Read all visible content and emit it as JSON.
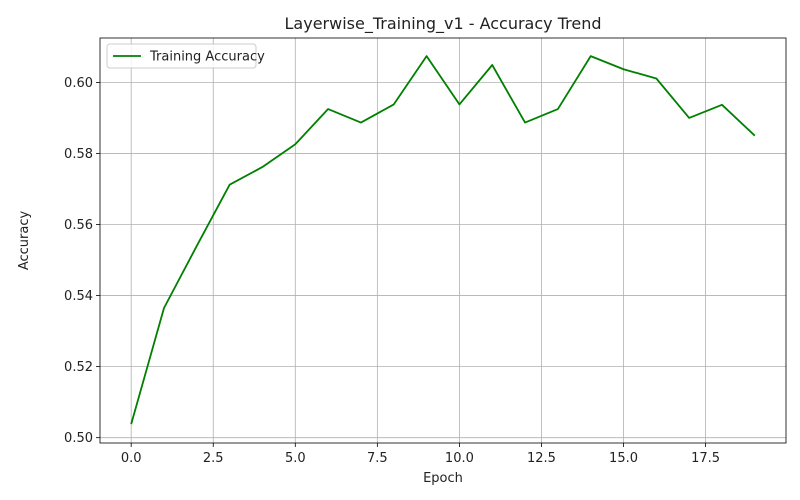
{
  "chart_data": {
    "type": "line",
    "title": "Layerwise_Training_v1 - Accuracy Trend",
    "xlabel": "Epoch",
    "ylabel": "Accuracy",
    "xlim": [
      -0.95,
      19.95
    ],
    "ylim": [
      0.4985,
      0.6125
    ],
    "x_ticks": [
      0,
      2.5,
      5,
      7.5,
      10,
      12.5,
      15,
      17.5
    ],
    "x_tick_labels": [
      "0.0",
      "2.5",
      "5.0",
      "7.5",
      "10.0",
      "12.5",
      "15.0",
      "17.5"
    ],
    "y_ticks": [
      0.5,
      0.52,
      0.54,
      0.56,
      0.58,
      0.6
    ],
    "y_tick_labels": [
      "0.50",
      "0.52",
      "0.54",
      "0.56",
      "0.58",
      "0.60"
    ],
    "grid": true,
    "legend_position": "top-left",
    "series": [
      {
        "name": "Training Accuracy",
        "color": "#008000",
        "x": [
          0,
          1,
          2,
          3,
          4,
          5,
          6,
          7,
          8,
          9,
          10,
          11,
          12,
          13,
          14,
          15,
          16,
          17,
          18,
          19
        ],
        "y": [
          0.5038,
          0.5365,
          0.554,
          0.5712,
          0.5762,
          0.5826,
          0.5925,
          0.5887,
          0.5938,
          0.6074,
          0.5938,
          0.6049,
          0.5887,
          0.5925,
          0.6074,
          0.6037,
          0.6011,
          0.59,
          0.5937,
          0.585
        ]
      }
    ]
  }
}
